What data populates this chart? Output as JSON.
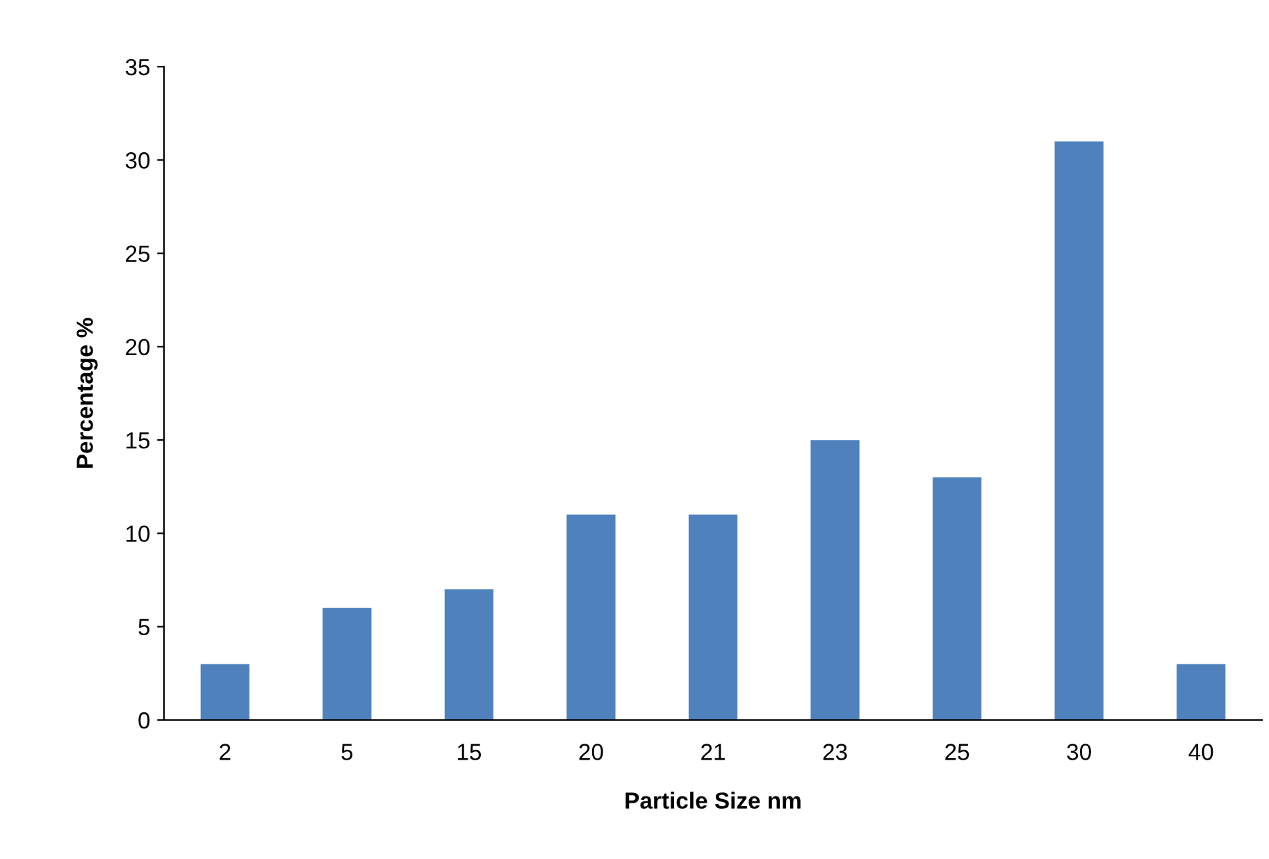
{
  "chart_data": {
    "type": "bar",
    "xlabel": "Particle Size nm",
    "ylabel": "Percentage %",
    "categories": [
      "2",
      "5",
      "15",
      "20",
      "21",
      "23",
      "25",
      "30",
      "40"
    ],
    "values": [
      3,
      6,
      7,
      11,
      11,
      15,
      13,
      31,
      3
    ],
    "color": "#4f81bd",
    "ylim": [
      0,
      35
    ],
    "yticks": [
      0,
      5,
      10,
      15,
      20,
      25,
      30,
      35
    ],
    "grid": false,
    "legend": false
  }
}
